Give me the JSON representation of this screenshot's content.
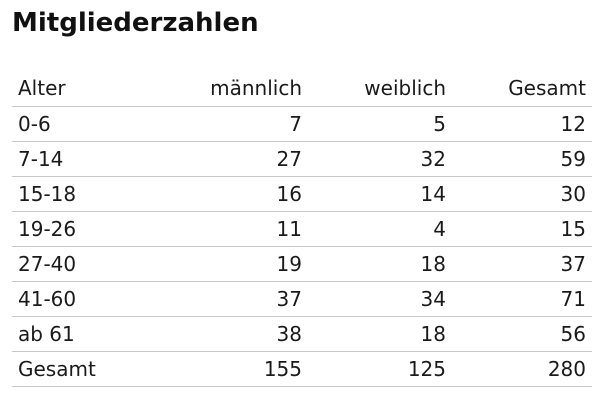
{
  "title": "Mitgliederzahlen",
  "table": {
    "headers": [
      "Alter",
      "männlich",
      "weiblich",
      "Gesamt"
    ],
    "rows": [
      [
        "0-6",
        "7",
        "5",
        "12"
      ],
      [
        "7-14",
        "27",
        "32",
        "59"
      ],
      [
        "15-18",
        "16",
        "14",
        "30"
      ],
      [
        "19-26",
        "11",
        "4",
        "15"
      ],
      [
        "27-40",
        "19",
        "18",
        "37"
      ],
      [
        "41-60",
        "37",
        "34",
        "71"
      ],
      [
        "ab 61",
        "38",
        "18",
        "56"
      ],
      [
        "Gesamt",
        "155",
        "125",
        "280"
      ]
    ]
  }
}
